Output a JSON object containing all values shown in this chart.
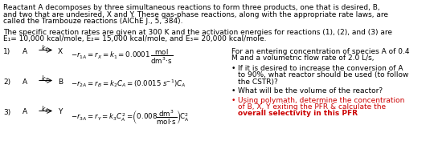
{
  "bg_color": "#ffffff",
  "text_color": "#000000",
  "red_color": "#cc0000",
  "fs": 6.5,
  "para1_line1": "Reactant A decomposes by three simultaneous reactions to form three products, one that is desired, B,",
  "para1_line2": "and two that are undesired, X and Y. These gas-phase reactions, along with the appropriate rate laws, are",
  "para1_line3": "called the Trambouze reactions (AIChE J., 5, 384).",
  "para2_line1": "The specific reaction rates are given at 300 K and the activation energies for reactions (1), (2), and (3) are",
  "para2_line2": "E₁= 10,000 kcal/mole, E₂= 15,000 kcal/mole, and E₃= 20,000 kcal/mole.",
  "right_line1": "For an entering concentration of species A of 0.4",
  "right_line2": "M and a volumetric flow rate of 2.0 L/s,",
  "b1_line1": "If it is desired to increase the conversion of A",
  "b1_line2": "to 90%, what reactor should be used (to follow",
  "b1_line3": "the CSTR)?",
  "b2_line1": "What will be the volume of the reactor?",
  "b3_line1": "Using polymath, determine the concentration",
  "b3_line2": "of B, X, Y exiting the PFR & calculate the",
  "b3_line3": "overall selectivity in this PFR"
}
